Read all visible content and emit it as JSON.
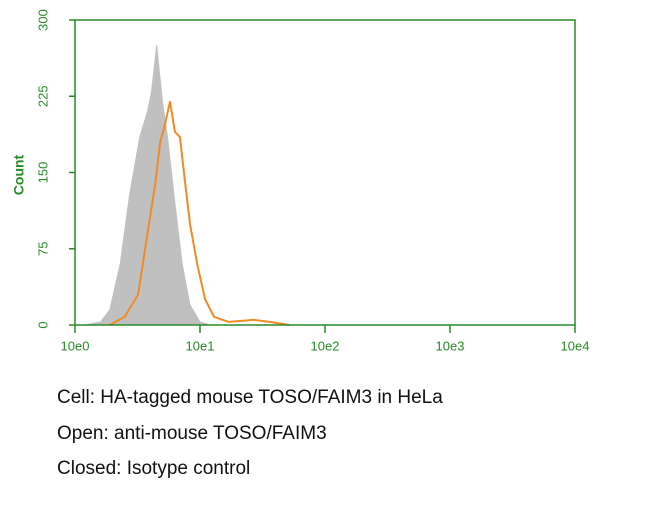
{
  "chart_data": {
    "type": "histogram-overlay",
    "ylabel": "Count",
    "axis_color": "#2a8a2a",
    "xlog": true,
    "xlim": [
      1,
      10000
    ],
    "xticks": [
      {
        "value": 1,
        "label": "10e0"
      },
      {
        "value": 10,
        "label": "10e1"
      },
      {
        "value": 100,
        "label": "10e2"
      },
      {
        "value": 1000,
        "label": "10e3"
      },
      {
        "value": 10000,
        "label": "10e4"
      }
    ],
    "ylim": [
      0,
      300
    ],
    "yticks": [
      0,
      75,
      150,
      225,
      300
    ],
    "series": [
      {
        "name": "Closed: Isotype control",
        "style": "filled",
        "color": "#c0c0c0",
        "x": [
          1.2,
          1.6,
          1.9,
          2.3,
          2.75,
          3.3,
          3.8,
          4.1,
          4.5,
          5,
          5.5,
          6.3,
          7.2,
          8.3,
          10,
          12
        ],
        "values": [
          0,
          3,
          15,
          60,
          130,
          185,
          210,
          230,
          275,
          220,
          185,
          120,
          60,
          20,
          3,
          0
        ]
      },
      {
        "name": "Open: anti-mouse TOSO/FAIM3",
        "style": "line",
        "color": "#f08a24",
        "x": [
          1.9,
          2.5,
          3.2,
          3.8,
          4.4,
          4.8,
          5.2,
          5.75,
          6.3,
          6.9,
          7.6,
          8.3,
          9.5,
          11,
          13,
          17,
          27,
          36,
          52
        ],
        "values": [
          0,
          8,
          30,
          90,
          140,
          180,
          195,
          220,
          190,
          185,
          140,
          100,
          60,
          25,
          8,
          3,
          5,
          3,
          0
        ]
      }
    ],
    "notes": [
      "Cell: HA-tagged mouse TOSO/FAIM3 in HeLa",
      "Open: anti-mouse TOSO/FAIM3",
      "Closed: Isotype control"
    ]
  }
}
